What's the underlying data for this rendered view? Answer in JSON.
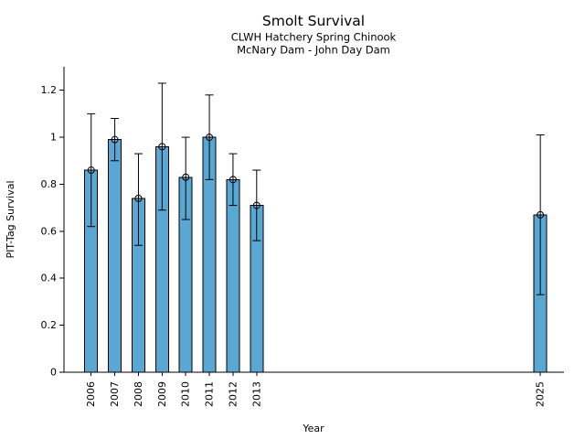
{
  "figure": {
    "background": "#ffffff"
  },
  "chart_data": {
    "type": "bar",
    "title": "Smolt Survival",
    "subtitle_lines": [
      "CLWH Hatchery Spring Chinook",
      "McNary Dam - John Day Dam"
    ],
    "xlabel": "Year",
    "ylabel": "PIT-Tag Survival",
    "categories": [
      2006,
      2007,
      2008,
      2009,
      2010,
      2011,
      2012,
      2013,
      2025
    ],
    "series": [
      {
        "name": "PIT-Tag Survival",
        "values": [
          0.86,
          0.99,
          0.74,
          0.96,
          0.83,
          1.0,
          0.82,
          0.71,
          0.67
        ],
        "err_low": [
          0.62,
          0.9,
          0.54,
          0.69,
          0.65,
          0.82,
          0.71,
          0.56,
          0.33
        ],
        "err_high": [
          1.1,
          1.08,
          0.93,
          1.23,
          1.0,
          1.18,
          0.93,
          0.86,
          1.01
        ]
      }
    ],
    "x_range": [
      2004.85,
      2026.0
    ],
    "ylim": [
      0,
      1.3
    ],
    "y_ticks": [
      0,
      0.2,
      0.4,
      0.6,
      0.8,
      1,
      1.2
    ],
    "y_tick_labels": [
      "0",
      "0.2",
      "0.4",
      "0.6",
      "0.8",
      "1",
      "1.2"
    ],
    "x_tick_labels": [
      "2006",
      "2007",
      "2008",
      "2009",
      "2010",
      "2011",
      "2012",
      "2013",
      "2025"
    ],
    "grid": false,
    "legend_position": "none",
    "marker": "open-circle",
    "error_bars": true,
    "bar_color": "#5BA7D3",
    "bar_edge_color": "#000000",
    "axis_color": "#000000",
    "text_color": "#000000"
  }
}
